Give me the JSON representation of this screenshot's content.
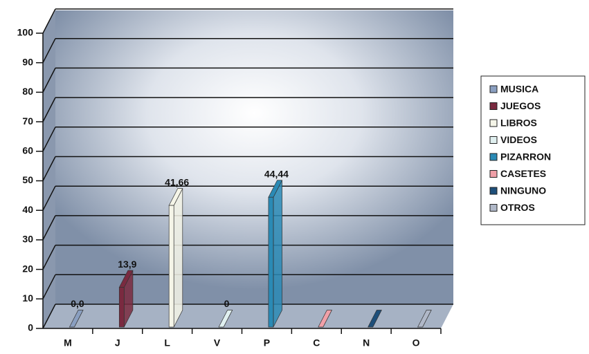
{
  "chart_data": {
    "type": "bar3d",
    "categories": [
      "M",
      "J",
      "L",
      "V",
      "P",
      "C",
      "N",
      "O"
    ],
    "values": [
      0,
      13.9,
      41.66,
      0,
      44.44,
      0,
      0,
      0
    ],
    "value_labels": [
      "0,0",
      "13,9",
      "41,66",
      "0",
      "44,44",
      null,
      null,
      null
    ],
    "legend": [
      "MUSICA",
      "JUEGOS",
      "LIBROS",
      "VIDEOS",
      "PIZARRON",
      "CASETES",
      "NINGUNO",
      "OTROS"
    ],
    "colors": [
      "#8a9fc0",
      "#7a2a40",
      "#f5f5e8",
      "#e0f0f0",
      "#2a8ab5",
      "#f0a0a8",
      "#1e4f7a",
      "#b0b8c8"
    ],
    "ylim": [
      0,
      100
    ],
    "yticks": [
      0,
      10,
      20,
      30,
      40,
      50,
      60,
      70,
      80,
      90,
      100
    ],
    "grid": true
  }
}
